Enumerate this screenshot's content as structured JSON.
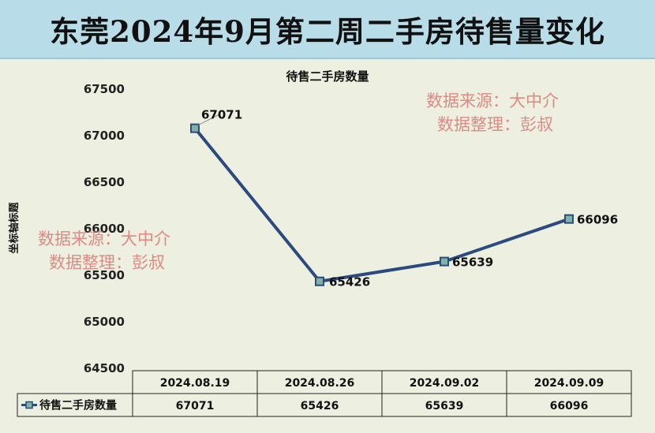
{
  "banner": {
    "title": "东莞2024年9月第二周二手房待售量变化"
  },
  "chart_data": {
    "type": "line",
    "title": "待售二手房数量",
    "ylabel": "坐标轴标题",
    "xlabel": "",
    "categories": [
      "2024.08.19",
      "2024.08.26",
      "2024.09.02",
      "2024.09.09"
    ],
    "series": [
      {
        "name": "待售二手房数量",
        "values": [
          67071,
          65426,
          65639,
          66096
        ]
      }
    ],
    "yticks": [
      64500,
      65000,
      65500,
      66000,
      66500,
      67000,
      67500
    ],
    "ylim": [
      64500,
      67500
    ],
    "grid": false,
    "data_labels": true,
    "data_table": true,
    "line_color": "#2b4a7e",
    "marker_color": "#7fb3a8"
  },
  "watermarks": [
    {
      "line1": "数据来源：大中介",
      "line2": "数据整理：彭叔"
    },
    {
      "line1": "数据来源：大中介",
      "line2": "数据整理：彭叔"
    }
  ]
}
